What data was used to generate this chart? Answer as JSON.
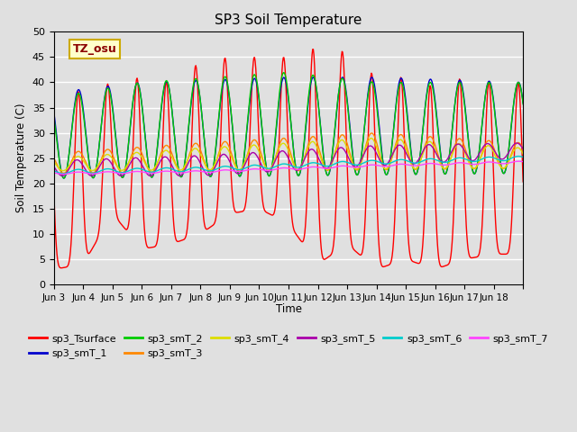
{
  "title": "SP3 Soil Temperature",
  "ylabel": "Soil Temperature (C)",
  "xlabel": "Time",
  "annotation": "TZ_osu",
  "annotation_color": "#8B0000",
  "annotation_bg": "#FFFFCC",
  "annotation_border": "#CCAA00",
  "ylim": [
    0,
    50
  ],
  "yticks": [
    0,
    5,
    10,
    15,
    20,
    25,
    30,
    35,
    40,
    45,
    50
  ],
  "bg_color": "#E0E0E0",
  "legend": [
    {
      "label": "sp3_Tsurface",
      "color": "#FF0000"
    },
    {
      "label": "sp3_smT_1",
      "color": "#0000CC"
    },
    {
      "label": "sp3_smT_2",
      "color": "#00CC00"
    },
    {
      "label": "sp3_smT_3",
      "color": "#FF8800"
    },
    {
      "label": "sp3_smT_4",
      "color": "#DDDD00"
    },
    {
      "label": "sp3_smT_5",
      "color": "#AA00AA"
    },
    {
      "label": "sp3_smT_6",
      "color": "#00CCCC"
    },
    {
      "label": "sp3_smT_7",
      "color": "#FF44FF"
    }
  ],
  "xtick_labels": [
    "Jun 3",
    "Jun 4",
    "Jun 5",
    "Jun 6",
    "Jun 7",
    "Jun 8",
    "Jun 9",
    "Jun 10",
    "Jun 11",
    "Jun 12",
    "Jun 13",
    "Jun 14",
    "Jun 15",
    "Jun 16",
    "Jun 17",
    "Jun 18"
  ],
  "num_days": 16
}
